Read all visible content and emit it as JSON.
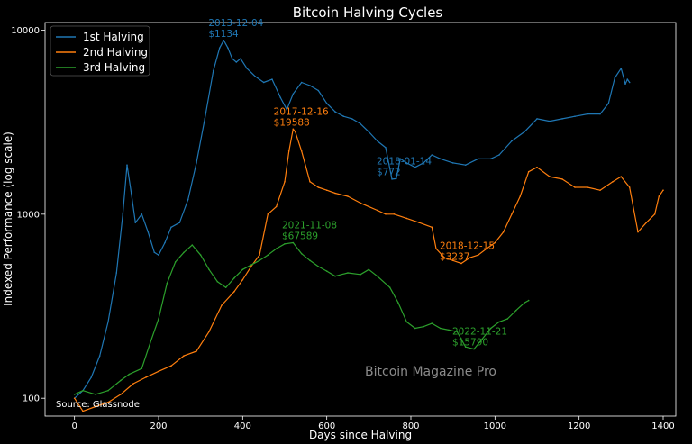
{
  "chart_data": {
    "type": "line",
    "title": "Bitcoin Halving Cycles",
    "xlabel": "Days since Halving",
    "ylabel": "Indexed Performance (log scale)",
    "xlim": [
      -70,
      1430
    ],
    "ylim": [
      80,
      11000
    ],
    "yscale": "log",
    "x_ticks": [
      0,
      200,
      400,
      600,
      800,
      1000,
      1200,
      1400
    ],
    "y_ticks": [
      100,
      1000,
      10000
    ],
    "x_tick_labels": [
      "0",
      "200",
      "400",
      "600",
      "800",
      "1000",
      "1200",
      "1400"
    ],
    "y_tick_labels": [
      "100",
      "1000",
      "10000"
    ],
    "legend_position": "top-left",
    "grid": false,
    "series": [
      {
        "name": "1st Halving",
        "color": "#1f77b4",
        "x": [
          0,
          20,
          40,
          60,
          80,
          100,
          115,
          125,
          135,
          145,
          160,
          175,
          190,
          200,
          215,
          230,
          250,
          270,
          290,
          310,
          330,
          345,
          355,
          365,
          375,
          385,
          395,
          410,
          430,
          450,
          470,
          490,
          505,
          520,
          540,
          560,
          580,
          600,
          620,
          640,
          660,
          680,
          700,
          720,
          740,
          755,
          765,
          775,
          790,
          810,
          830,
          850,
          870,
          900,
          930,
          960,
          990,
          1010,
          1040,
          1070,
          1100,
          1130,
          1160,
          1190,
          1220,
          1250,
          1270,
          1285,
          1300,
          1310,
          1315,
          1320
        ],
        "values": [
          100,
          110,
          130,
          170,
          260,
          480,
          1000,
          1850,
          1300,
          900,
          1000,
          800,
          620,
          600,
          700,
          850,
          900,
          1200,
          1900,
          3300,
          6000,
          8000,
          8800,
          8000,
          7000,
          6700,
          7000,
          6200,
          5600,
          5200,
          5400,
          4300,
          3700,
          4500,
          5200,
          5000,
          4700,
          4000,
          3600,
          3400,
          3300,
          3100,
          2800,
          2500,
          2300,
          1550,
          1560,
          2000,
          1900,
          1800,
          1900,
          2100,
          2000,
          1900,
          1850,
          2000,
          2000,
          2100,
          2500,
          2800,
          3300,
          3200,
          3300,
          3400,
          3500,
          3500,
          4000,
          5500,
          6200,
          5100,
          5400,
          5200
        ]
      },
      {
        "name": "2nd Halving",
        "color": "#ff7f0e",
        "x": [
          0,
          20,
          50,
          80,
          110,
          140,
          170,
          200,
          230,
          260,
          290,
          320,
          350,
          380,
          400,
          420,
          440,
          460,
          480,
          500,
          510,
          520,
          525,
          540,
          560,
          580,
          600,
          620,
          650,
          680,
          700,
          720,
          740,
          760,
          790,
          820,
          850,
          860,
          880,
          900,
          920,
          940,
          960,
          980,
          1000,
          1020,
          1040,
          1060,
          1080,
          1100,
          1130,
          1160,
          1190,
          1220,
          1250,
          1280,
          1300,
          1320,
          1340,
          1360,
          1380,
          1390,
          1400
        ],
        "values": [
          100,
          85,
          90,
          95,
          105,
          120,
          130,
          140,
          150,
          170,
          180,
          230,
          320,
          380,
          440,
          520,
          600,
          1000,
          1100,
          1500,
          2200,
          2900,
          2800,
          2200,
          1500,
          1400,
          1350,
          1300,
          1250,
          1150,
          1100,
          1050,
          1000,
          1000,
          950,
          900,
          850,
          650,
          580,
          560,
          540,
          580,
          600,
          650,
          700,
          800,
          1000,
          1250,
          1700,
          1800,
          1600,
          1550,
          1400,
          1400,
          1350,
          1500,
          1600,
          1400,
          800,
          900,
          1000,
          1250,
          1350
        ]
      },
      {
        "name": "3rd Halving",
        "color": "#2ca02c",
        "x": [
          0,
          20,
          50,
          80,
          110,
          130,
          160,
          180,
          200,
          220,
          240,
          260,
          280,
          300,
          320,
          340,
          360,
          380,
          400,
          420,
          440,
          460,
          480,
          500,
          520,
          540,
          560,
          580,
          600,
          620,
          650,
          680,
          700,
          720,
          750,
          770,
          790,
          810,
          830,
          850,
          870,
          890,
          910,
          930,
          950,
          970,
          990,
          1010,
          1030,
          1050,
          1070,
          1080
        ],
        "values": [
          105,
          110,
          105,
          110,
          125,
          135,
          145,
          200,
          270,
          420,
          550,
          620,
          680,
          600,
          500,
          430,
          400,
          450,
          500,
          530,
          560,
          600,
          650,
          690,
          700,
          610,
          560,
          520,
          490,
          460,
          480,
          470,
          500,
          460,
          400,
          330,
          260,
          240,
          245,
          255,
          240,
          235,
          230,
          190,
          185,
          210,
          240,
          260,
          270,
          300,
          330,
          340
        ]
      }
    ],
    "annotations": [
      {
        "lines": [
          "2013-12-04",
          "$1134"
        ],
        "color": "#1f77b4",
        "x": 370,
        "y": 8800
      },
      {
        "lines": [
          "2017-12-16",
          "$19588"
        ],
        "color": "#ff7f0e",
        "x": 525,
        "y": 2900
      },
      {
        "lines": [
          "2018-01-14",
          "$772"
        ],
        "color": "#1f77b4",
        "x": 770,
        "y": 1560
      },
      {
        "lines": [
          "2021-11-08",
          "$67589"
        ],
        "color": "#2ca02c",
        "x": 545,
        "y": 700
      },
      {
        "lines": [
          "2018-12-15",
          "$3237"
        ],
        "color": "#ff7f0e",
        "x": 920,
        "y": 540
      },
      {
        "lines": [
          "2022-11-21",
          "$15790"
        ],
        "color": "#2ca02c",
        "x": 950,
        "y": 185
      }
    ],
    "watermark": "Bitcoin Magazine Pro",
    "source": "Source: Glassnode"
  }
}
